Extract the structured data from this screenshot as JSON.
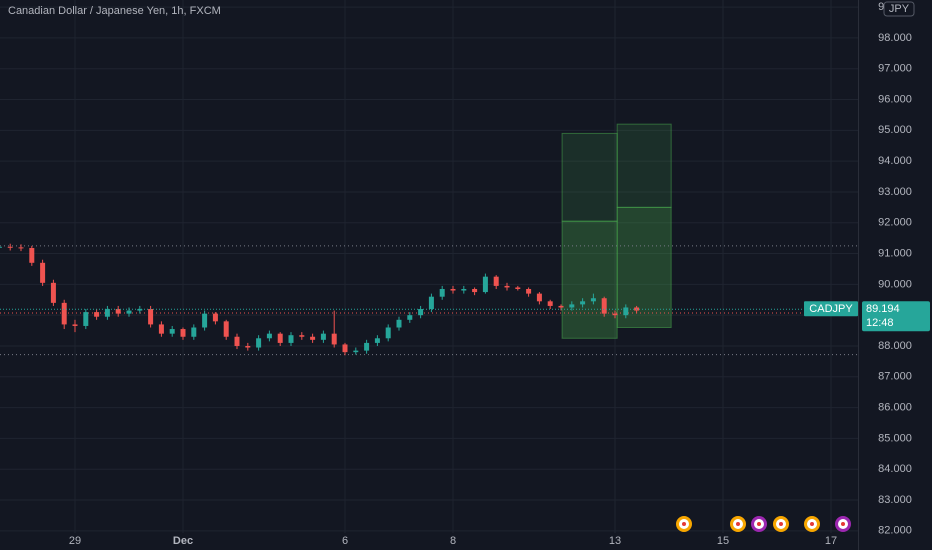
{
  "chart_data": {
    "type": "candlestick",
    "title": "Canadian Dollar / Japanese Yen, 1h, FXCM",
    "symbol": "CADJPY",
    "currency": "JPY",
    "last_price": 89.194,
    "countdown": "12:48",
    "x": [
      -1.4,
      -1.2,
      -1,
      -0.8,
      -0.6,
      -0.4,
      -0.2,
      0,
      0.2,
      0.4,
      0.6,
      0.8,
      1,
      1.2,
      1.4,
      1.6,
      1.8,
      2,
      2.2,
      2.4,
      2.6,
      2.8,
      3,
      3.2,
      3.4,
      3.6,
      3.8,
      4,
      4.2,
      4.4,
      4.6,
      4.8,
      5,
      5.2,
      5.4,
      5.6,
      5.8,
      6,
      6.2,
      6.4,
      6.6,
      6.8,
      7,
      7.2,
      7.4,
      7.6,
      7.8,
      8,
      8.2,
      8.4,
      8.6,
      8.8,
      9,
      9.2,
      9.4,
      9.6,
      9.8,
      10,
      10.2,
      10.4
    ],
    "open": [
      91.2,
      91.22,
      91.2,
      91.18,
      90.7,
      90.05,
      89.4,
      88.7,
      88.65,
      89.1,
      88.95,
      89.2,
      89.05,
      89.15,
      89.2,
      88.7,
      88.4,
      88.55,
      88.3,
      88.6,
      89.05,
      88.8,
      88.3,
      88.0,
      87.95,
      88.25,
      88.4,
      88.1,
      88.35,
      88.3,
      88.2,
      88.4,
      88.05,
      87.8,
      87.85,
      88.1,
      88.25,
      88.6,
      88.85,
      89.0,
      89.2,
      89.6,
      89.85,
      89.8,
      89.85,
      89.75,
      90.25,
      89.95,
      89.9,
      89.85,
      89.7,
      89.45,
      89.3,
      89.25,
      89.35,
      89.45,
      89.55,
      89.05,
      89.0,
      89.25
    ],
    "high": [
      91.32,
      91.32,
      91.3,
      91.25,
      90.8,
      90.15,
      89.5,
      88.85,
      89.2,
      89.2,
      89.3,
      89.3,
      89.25,
      89.3,
      89.3,
      88.8,
      88.65,
      88.6,
      88.7,
      89.15,
      89.1,
      88.85,
      88.4,
      88.1,
      88.35,
      88.5,
      88.45,
      88.45,
      88.45,
      88.4,
      88.5,
      89.15,
      88.1,
      87.95,
      88.2,
      88.35,
      88.7,
      88.95,
      89.1,
      89.3,
      89.7,
      89.95,
      89.95,
      89.95,
      89.9,
      90.35,
      90.3,
      90.05,
      89.95,
      89.9,
      89.75,
      89.5,
      89.35,
      89.45,
      89.55,
      89.7,
      89.6,
      89.15,
      89.35,
      89.3
    ],
    "low": [
      91.1,
      91.1,
      91.08,
      90.6,
      89.95,
      89.3,
      88.55,
      88.45,
      88.55,
      88.85,
      88.85,
      88.95,
      88.95,
      89.05,
      88.6,
      88.3,
      88.3,
      88.2,
      88.2,
      88.5,
      88.7,
      88.2,
      87.9,
      87.85,
      87.85,
      88.15,
      88.0,
      88.0,
      88.2,
      88.1,
      88.1,
      87.95,
      87.7,
      87.72,
      87.75,
      88.0,
      88.15,
      88.5,
      88.75,
      88.9,
      89.1,
      89.5,
      89.7,
      89.7,
      89.65,
      89.7,
      89.85,
      89.8,
      89.8,
      89.6,
      89.35,
      89.2,
      89.15,
      89.15,
      89.25,
      89.35,
      88.95,
      88.9,
      88.9,
      89.05
    ],
    "close": [
      91.22,
      91.2,
      91.18,
      90.7,
      90.05,
      89.4,
      88.7,
      88.65,
      89.1,
      88.95,
      89.2,
      89.05,
      89.15,
      89.2,
      88.7,
      88.4,
      88.55,
      88.3,
      88.6,
      89.05,
      88.8,
      88.3,
      88.0,
      87.95,
      88.25,
      88.4,
      88.1,
      88.35,
      88.3,
      88.2,
      88.4,
      88.05,
      87.8,
      87.85,
      88.1,
      88.25,
      88.6,
      88.85,
      89.0,
      89.2,
      89.6,
      89.85,
      89.8,
      89.85,
      89.75,
      90.25,
      89.95,
      89.9,
      89.85,
      89.7,
      89.45,
      89.3,
      89.25,
      89.35,
      89.45,
      89.55,
      89.05,
      89.0,
      89.25,
      89.15
    ],
    "up_color": "#26a69a",
    "down_color": "#ef5350",
    "xlim": [
      -1.389,
      14.5
    ],
    "xticks": [
      {
        "value": 0,
        "label": "29"
      },
      {
        "value": 2,
        "label": "Dec"
      },
      {
        "value": 5,
        "label": "6"
      },
      {
        "value": 7,
        "label": "8"
      },
      {
        "value": 10,
        "label": "13"
      },
      {
        "value": 12,
        "label": "15"
      },
      {
        "value": 14,
        "label": "17"
      }
    ],
    "ylim": [
      81.93,
      99.23
    ],
    "yticks": [
      {
        "value": 82,
        "label": "82.000"
      },
      {
        "value": 83,
        "label": "83.000"
      },
      {
        "value": 84,
        "label": "84.000"
      },
      {
        "value": 85,
        "label": "85.000"
      },
      {
        "value": 86,
        "label": "86.000"
      },
      {
        "value": 87,
        "label": "87.000"
      },
      {
        "value": 88,
        "label": "88.000"
      },
      {
        "value": 89,
        "label": "89.000"
      },
      {
        "value": 90,
        "label": "90.000"
      },
      {
        "value": 91,
        "label": "91.000"
      },
      {
        "value": 92,
        "label": "92.000"
      },
      {
        "value": 93,
        "label": "93.000"
      },
      {
        "value": 94,
        "label": "94.000"
      },
      {
        "value": 95,
        "label": "95.000"
      },
      {
        "value": 96,
        "label": "96.000"
      },
      {
        "value": 97,
        "label": "97.000"
      },
      {
        "value": 98,
        "label": "98.000"
      },
      {
        "value": 99,
        "label": "99.000"
      }
    ],
    "grid": true,
    "hlines": [
      {
        "value": 91.25,
        "color": "#787b86"
      },
      {
        "value": 87.72,
        "color": "#787b86"
      },
      {
        "value": 89.07,
        "color": "#ef5350"
      }
    ],
    "boxes": [
      {
        "x": [
          9.02,
          10.04
        ],
        "top": 94.9,
        "middle": 92.05,
        "bottom": 88.25
      },
      {
        "x": [
          10.04,
          11.04
        ],
        "top": 95.2,
        "middle": 92.5,
        "bottom": 88.6
      }
    ]
  }
}
